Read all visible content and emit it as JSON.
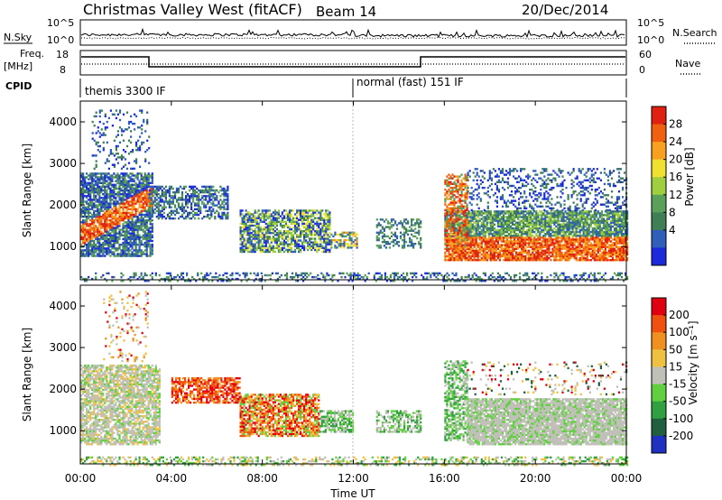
{
  "header": {
    "title": "Christmas Valley West (fitACF)",
    "beam": "Beam 14",
    "date": "20/Dec/2014"
  },
  "panels": {
    "nsky_label": "N.Sky",
    "nsky_ticks": [
      "10^5",
      "10^0"
    ],
    "nsearch_label": "N.Search",
    "nsearch_ticks": [
      "10^5",
      "10^0"
    ],
    "freq_label": "Freq.",
    "freq_unit": "[MHz]",
    "freq_ticks": [
      "18",
      "8"
    ],
    "nave_label": "Nave",
    "nave_ticks": [
      "60",
      "0"
    ],
    "cpid_label": "CPID",
    "cpid_segments": [
      "themis 3300 IF",
      "normal (fast) 151 IF"
    ]
  },
  "colors": {
    "power_scale": [
      "#1c2adb",
      "#2f5fb8",
      "#3f7f55",
      "#5aa05a",
      "#9fcf3f",
      "#f0e030",
      "#f8a020",
      "#f06010",
      "#e02010"
    ],
    "velocity_scale": [
      "#2030c0",
      "#206040",
      "#30a040",
      "#60d040",
      "#c0c0b8",
      "#f0c040",
      "#f09020",
      "#f05010",
      "#e00010"
    ]
  },
  "chart_data": [
    {
      "type": "heatmap",
      "name": "power",
      "ylabel": "Slant Range [km]",
      "yticks": [
        1000,
        2000,
        3000,
        4000
      ],
      "ylim": [
        200,
        4500
      ],
      "xticks": [
        "00:00",
        "04:00",
        "08:00",
        "12:00",
        "16:00",
        "20:00",
        "00:00"
      ],
      "colorbar_label": "Power [dB]",
      "colorbar_ticks": [
        "28",
        "24",
        "20",
        "16",
        "12",
        "8",
        "4"
      ]
    },
    {
      "type": "heatmap",
      "name": "velocity",
      "ylabel": "Slant Range [km]",
      "yticks": [
        1000,
        2000,
        3000,
        4000
      ],
      "ylim": [
        200,
        4500
      ],
      "xticks": [
        "00:00",
        "04:00",
        "08:00",
        "12:00",
        "16:00",
        "20:00",
        "00:00"
      ],
      "xlabel": "Time UT",
      "colorbar_label": "Velocity [m s⁻¹]",
      "colorbar_ticks": [
        "200",
        "100",
        "50",
        "15",
        "-15",
        "-50",
        "-100",
        "-200"
      ]
    }
  ]
}
